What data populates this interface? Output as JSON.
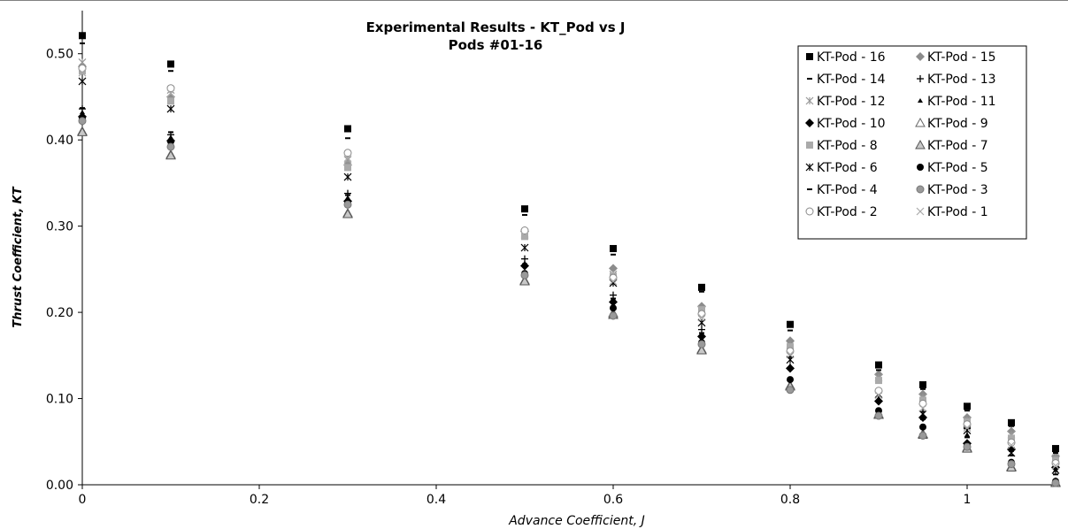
{
  "chart_data": {
    "type": "scatter",
    "title": "Experimental Results - KT_Pod vs J",
    "subtitle": "Pods #01-16",
    "xlabel": "Advance Coefficient, J",
    "ylabel": "Thrust Coefficient, KT",
    "xlim": [
      0,
      1.1
    ],
    "ylim": [
      0,
      0.55
    ],
    "x_ticks": [
      "0",
      "0.2",
      "0.4",
      "0.6",
      "0.8",
      "1"
    ],
    "y_ticks": [
      "0.00",
      "0.10",
      "0.20",
      "0.30",
      "0.40",
      "0.50"
    ],
    "grid": false,
    "legend_position": "top-right",
    "x": [
      0,
      0.1,
      0.3,
      0.5,
      0.6,
      0.7,
      0.8,
      0.9,
      0.95,
      1.0,
      1.05,
      1.1
    ],
    "series": [
      {
        "name": "KT-Pod - 16",
        "marker": "square",
        "color": "#000000",
        "values": [
          0.521,
          0.488,
          0.413,
          0.32,
          0.274,
          0.229,
          0.186,
          0.139,
          0.116,
          0.091,
          0.072,
          0.042
        ]
      },
      {
        "name": "KT-Pod - 15",
        "marker": "diamond",
        "color": "#8c8c8c",
        "values": [
          0.485,
          0.45,
          0.371,
          0.294,
          0.251,
          0.207,
          0.167,
          0.128,
          0.105,
          0.078,
          0.062,
          0.033
        ]
      },
      {
        "name": "KT-Pod - 14",
        "marker": "dash",
        "color": "#000000",
        "values": [
          0.512,
          0.48,
          0.402,
          0.313,
          0.267,
          0.224,
          0.179,
          0.133,
          0.111,
          0.086,
          0.068,
          0.037
        ]
      },
      {
        "name": "KT-Pod - 13",
        "marker": "plus",
        "color": "#000000",
        "values": [
          0.436,
          0.406,
          0.338,
          0.262,
          0.22,
          0.18,
          0.148,
          0.107,
          0.085,
          0.065,
          0.043,
          0.02
        ]
      },
      {
        "name": "KT-Pod - 12",
        "marker": "star",
        "color": "#999999",
        "values": [
          0.49,
          0.458,
          0.377,
          0.291,
          0.244,
          0.202,
          0.162,
          0.124,
          0.101,
          0.075,
          0.058,
          0.031
        ]
      },
      {
        "name": "KT-Pod - 11",
        "marker": "triangle-filled",
        "color": "#000000",
        "values": [
          0.432,
          0.403,
          0.333,
          0.257,
          0.214,
          0.174,
          0.138,
          0.1,
          0.08,
          0.058,
          0.04,
          0.017
        ]
      },
      {
        "name": "KT-Pod - 10",
        "marker": "diamond",
        "color": "#000000",
        "values": [
          0.427,
          0.399,
          0.329,
          0.254,
          0.212,
          0.172,
          0.135,
          0.097,
          0.078,
          0.048,
          0.041,
          0.02
        ]
      },
      {
        "name": "KT-Pod - 9",
        "marker": "triangle-open",
        "color": "#666666",
        "values": [
          0.41,
          0.383,
          0.315,
          0.237,
          0.199,
          0.157,
          0.115,
          0.082,
          0.059,
          0.043,
          0.021,
          0.003
        ]
      },
      {
        "name": "KT-Pod - 8",
        "marker": "square",
        "color": "#aaaaaa",
        "values": [
          0.48,
          0.445,
          0.368,
          0.288,
          0.242,
          0.203,
          0.16,
          0.121,
          0.098,
          0.073,
          0.054,
          0.028
        ]
      },
      {
        "name": "KT-Pod - 7",
        "marker": "triangle-gray",
        "color": "#555555",
        "values": [
          0.409,
          0.382,
          0.314,
          0.236,
          0.197,
          0.156,
          0.114,
          0.081,
          0.058,
          0.042,
          0.02,
          0.002
        ]
      },
      {
        "name": "KT-Pod - 6",
        "marker": "star",
        "color": "#000000",
        "values": [
          0.468,
          0.436,
          0.357,
          0.275,
          0.234,
          0.188,
          0.145,
          0.105,
          0.082,
          0.063,
          0.037,
          0.017
        ]
      },
      {
        "name": "KT-Pod - 5",
        "marker": "circle",
        "color": "#000000",
        "values": [
          0.425,
          0.398,
          0.327,
          0.245,
          0.205,
          0.165,
          0.122,
          0.086,
          0.067,
          0.047,
          0.026,
          0.004
        ]
      },
      {
        "name": "KT-Pod - 4",
        "marker": "dash",
        "color": "#000000",
        "values": [
          0.437,
          0.409,
          0.336,
          0.256,
          0.216,
          0.176,
          0.134,
          0.096,
          0.076,
          0.055,
          0.034,
          0.012
        ]
      },
      {
        "name": "KT-Pod - 3",
        "marker": "circle-gray",
        "color": "#777777",
        "values": [
          0.422,
          0.392,
          0.325,
          0.243,
          0.196,
          0.163,
          0.11,
          0.08,
          0.057,
          0.044,
          0.024,
          0.002
        ]
      },
      {
        "name": "KT-Pod - 2",
        "marker": "circle-open",
        "color": "#888888",
        "values": [
          0.483,
          0.46,
          0.385,
          0.295,
          0.24,
          0.198,
          0.155,
          0.109,
          0.094,
          0.07,
          0.049,
          0.025
        ]
      },
      {
        "name": "KT-Pod - 1",
        "marker": "x",
        "color": "#aaaaaa",
        "values": [
          0.478,
          0.454,
          0.379,
          0.289,
          0.236,
          0.194,
          0.151,
          0.104,
          0.089,
          0.066,
          0.046,
          0.022
        ]
      }
    ]
  }
}
